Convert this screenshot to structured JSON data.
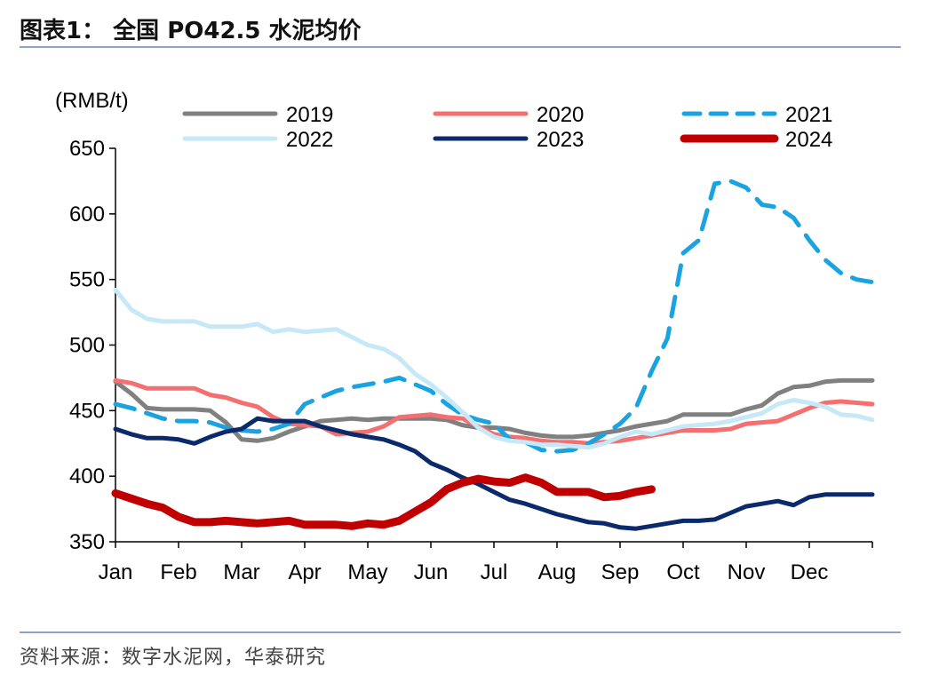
{
  "header": {
    "title": "图表1：  全国 PO42.5 水泥均价"
  },
  "footer": {
    "source": "资料来源：数字水泥网，华泰研究"
  },
  "chart_data": {
    "type": "line",
    "title": "全国 PO42.5 水泥均价",
    "ylabel": "(RMB/t)",
    "xlabel": "",
    "ylim": [
      350,
      650
    ],
    "yticks": [
      "650",
      "600",
      "550",
      "500",
      "450",
      "400",
      "350"
    ],
    "ytick_values": [
      650,
      600,
      550,
      500,
      450,
      400,
      350
    ],
    "xlim": [
      0,
      12
    ],
    "xticks": [
      "Jan",
      "Feb",
      "Mar",
      "Apr",
      "May",
      "Jun",
      "Jul",
      "Aug",
      "Sep",
      "Oct",
      "Nov",
      "Dec"
    ],
    "grid": false,
    "legend": "top",
    "series": [
      {
        "name": "2019",
        "color": "#808080",
        "style": "solid",
        "width": 5,
        "x": [
          0,
          0.25,
          0.5,
          0.75,
          1.0,
          1.25,
          1.5,
          1.75,
          2.0,
          2.25,
          2.5,
          2.75,
          3.0,
          3.25,
          3.5,
          3.75,
          4.0,
          4.25,
          4.5,
          4.75,
          5.0,
          5.25,
          5.5,
          5.75,
          6.0,
          6.25,
          6.5,
          6.75,
          7.0,
          7.25,
          7.5,
          7.75,
          8.0,
          8.25,
          8.5,
          8.75,
          9.0,
          9.25,
          9.5,
          9.75,
          10.0,
          10.25,
          10.5,
          10.75,
          11.0,
          11.25,
          11.5,
          11.75,
          12.0
        ],
        "values": [
          472,
          463,
          452,
          451,
          451,
          451,
          450,
          441,
          428,
          427,
          429,
          434,
          438,
          442,
          443,
          444,
          443,
          444,
          444,
          444,
          444,
          443,
          439,
          437,
          437,
          436,
          433,
          431,
          430,
          430,
          431,
          433,
          435,
          438,
          440,
          442,
          447,
          447,
          447,
          447,
          451,
          454,
          463,
          468,
          469,
          472,
          473,
          473,
          473
        ]
      },
      {
        "name": "2020",
        "color": "#f47070",
        "style": "solid",
        "width": 5,
        "x": [
          0,
          0.25,
          0.5,
          0.75,
          1.0,
          1.25,
          1.5,
          1.75,
          2.0,
          2.25,
          2.5,
          2.75,
          3.0,
          3.25,
          3.5,
          3.75,
          4.0,
          4.25,
          4.5,
          4.75,
          5.0,
          5.25,
          5.5,
          5.75,
          6.0,
          6.25,
          6.5,
          6.75,
          7.0,
          7.25,
          7.5,
          7.75,
          8.0,
          8.25,
          8.5,
          8.75,
          9.0,
          9.25,
          9.5,
          9.75,
          10.0,
          10.25,
          10.5,
          10.75,
          11.0,
          11.25,
          11.5,
          11.75,
          12.0
        ],
        "values": [
          473,
          471,
          467,
          467,
          467,
          467,
          462,
          460,
          456,
          453,
          445,
          440,
          439,
          438,
          432,
          433,
          434,
          438,
          445,
          446,
          447,
          445,
          444,
          438,
          432,
          430,
          429,
          427,
          426,
          426,
          425,
          426,
          427,
          429,
          431,
          433,
          435,
          435,
          435,
          436,
          440,
          441,
          442,
          447,
          452,
          456,
          457,
          456,
          455
        ]
      },
      {
        "name": "2021",
        "color": "#1aa3e0",
        "style": "dashed",
        "width": 5,
        "x": [
          0,
          0.25,
          0.5,
          0.75,
          1.0,
          1.25,
          1.5,
          1.75,
          2.0,
          2.25,
          2.5,
          2.75,
          3.0,
          3.25,
          3.5,
          3.75,
          4.0,
          4.25,
          4.5,
          4.75,
          5.0,
          5.25,
          5.5,
          5.75,
          6.0,
          6.25,
          6.5,
          6.75,
          7.0,
          7.25,
          7.5,
          7.75,
          8.0,
          8.25,
          8.5,
          8.75,
          9.0,
          9.25,
          9.5,
          9.75,
          10.0,
          10.25,
          10.5,
          10.75,
          11.0,
          11.25,
          11.5,
          11.75,
          12.0
        ],
        "values": [
          455,
          452,
          448,
          444,
          442,
          442,
          441,
          437,
          435,
          434,
          436,
          440,
          455,
          460,
          465,
          468,
          470,
          472,
          475,
          470,
          465,
          455,
          447,
          443,
          440,
          428,
          426,
          420,
          419,
          420,
          425,
          432,
          440,
          452,
          480,
          505,
          570,
          580,
          623,
          625,
          620,
          607,
          605,
          597,
          580,
          565,
          555,
          550,
          548
        ]
      },
      {
        "name": "2022",
        "color": "#c6e8f7",
        "style": "solid",
        "width": 5,
        "x": [
          0,
          0.25,
          0.5,
          0.75,
          1.0,
          1.25,
          1.5,
          1.75,
          2.0,
          2.25,
          2.5,
          2.75,
          3.0,
          3.25,
          3.5,
          3.75,
          4.0,
          4.25,
          4.5,
          4.75,
          5.0,
          5.25,
          5.5,
          5.75,
          6.0,
          6.25,
          6.5,
          6.75,
          7.0,
          7.25,
          7.5,
          7.75,
          8.0,
          8.25,
          8.5,
          8.75,
          9.0,
          9.25,
          9.5,
          9.75,
          10.0,
          10.25,
          10.5,
          10.75,
          11.0,
          11.25,
          11.5,
          11.75,
          12.0
        ],
        "values": [
          542,
          527,
          520,
          518,
          518,
          518,
          514,
          514,
          514,
          516,
          510,
          512,
          510,
          511,
          512,
          506,
          500,
          497,
          490,
          478,
          470,
          460,
          449,
          437,
          430,
          427,
          426,
          424,
          424,
          423,
          422,
          425,
          430,
          434,
          432,
          435,
          438,
          439,
          440,
          442,
          445,
          448,
          455,
          458,
          456,
          453,
          447,
          446,
          443
        ]
      },
      {
        "name": "2023",
        "color": "#0b2a6b",
        "style": "solid",
        "width": 5,
        "x": [
          0,
          0.25,
          0.5,
          0.75,
          1.0,
          1.25,
          1.5,
          1.75,
          2.0,
          2.25,
          2.5,
          2.75,
          3.0,
          3.25,
          3.5,
          3.75,
          4.0,
          4.25,
          4.5,
          4.75,
          5.0,
          5.25,
          5.5,
          5.75,
          6.0,
          6.25,
          6.5,
          6.75,
          7.0,
          7.25,
          7.5,
          7.75,
          8.0,
          8.25,
          8.5,
          8.75,
          9.0,
          9.25,
          9.5,
          9.75,
          10.0,
          10.25,
          10.5,
          10.75,
          11.0,
          11.25,
          11.5,
          11.75,
          12.0
        ],
        "values": [
          436,
          432,
          429,
          429,
          428,
          425,
          430,
          434,
          436,
          444,
          442,
          442,
          442,
          438,
          435,
          432,
          430,
          428,
          424,
          419,
          410,
          405,
          399,
          394,
          388,
          382,
          379,
          375,
          371,
          368,
          365,
          364,
          361,
          360,
          362,
          364,
          366,
          366,
          367,
          372,
          377,
          379,
          381,
          378,
          384,
          386,
          386,
          386,
          386
        ]
      },
      {
        "name": "2024",
        "color": "#c00000",
        "style": "solid",
        "width": 9,
        "x": [
          0,
          0.25,
          0.5,
          0.75,
          1.0,
          1.25,
          1.5,
          1.75,
          2.0,
          2.25,
          2.5,
          2.75,
          3.0,
          3.25,
          3.5,
          3.75,
          4.0,
          4.25,
          4.5,
          4.75,
          5.0,
          5.25,
          5.5,
          5.75,
          6.0,
          6.25,
          6.5,
          6.75,
          7.0,
          7.25,
          7.5,
          7.75,
          8.0,
          8.25,
          8.5
        ],
        "values": [
          387,
          383,
          379,
          376,
          369,
          365,
          365,
          366,
          365,
          364,
          365,
          366,
          363,
          363,
          363,
          362,
          364,
          363,
          366,
          373,
          380,
          390,
          395,
          398,
          396,
          395,
          399,
          395,
          388,
          388,
          388,
          384,
          385,
          388,
          390
        ]
      }
    ]
  }
}
